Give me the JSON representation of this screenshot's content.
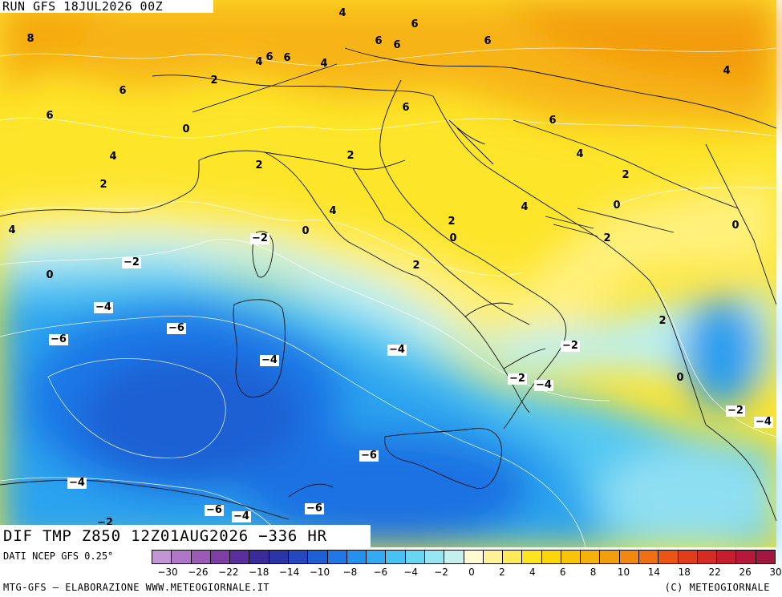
{
  "run_label": "RUN GFS 18JUL2026 00Z",
  "variable_label": "DIF TMP Z850 12Z01AUG2026 −336 HR",
  "source_label": "DATI NCEP GFS 0.25°",
  "credit_left": "MTG-GFS — ELABORAZIONE WWW.METEOGIORNALE.IT",
  "credit_right": "(C) METEOGIORNALE",
  "colorbar": {
    "colors": [
      "#c495d6",
      "#b276c9",
      "#9d59b6",
      "#7e3ea6",
      "#5b2e9c",
      "#3b2a9a",
      "#2a36a8",
      "#2448c0",
      "#1f5fd6",
      "#1f78e6",
      "#2591ee",
      "#33aaf2",
      "#47c2f3",
      "#68d6f2",
      "#95e5f2",
      "#c4f0ee",
      "#fffbd0",
      "#fff39a",
      "#ffeb5a",
      "#fee320",
      "#fad60a",
      "#f7c40a",
      "#f5b20b",
      "#f39e0d",
      "#f28810",
      "#ef6f12",
      "#ea5514",
      "#e23d1a",
      "#d62a24",
      "#c61d30",
      "#b5183b",
      "#a3163f"
    ],
    "tick_labels": [
      "−30",
      "−26",
      "−22",
      "−18",
      "−14",
      "−10",
      "−8",
      "−6",
      "−4",
      "−2",
      "0",
      "2",
      "4",
      "6",
      "8",
      "10",
      "14",
      "18",
      "22",
      "26",
      "30"
    ]
  },
  "contour_labels": [
    {
      "text": "8",
      "bare": true
    },
    {
      "text": "6",
      "bare": true
    },
    {
      "text": "6",
      "bare": true
    },
    {
      "text": "4",
      "bare": true
    },
    {
      "text": "2",
      "bare": true
    },
    {
      "text": "0",
      "bare": true
    },
    {
      "text": "2",
      "bare": true
    },
    {
      "text": "4",
      "bare": true
    },
    {
      "text": "4",
      "bare": true
    },
    {
      "text": "6",
      "bare": true
    },
    {
      "text": "6",
      "bare": true
    },
    {
      "text": "4",
      "bare": true
    },
    {
      "text": "6",
      "bare": true
    },
    {
      "text": "6",
      "bare": true
    },
    {
      "text": "6",
      "bare": true
    },
    {
      "text": "6",
      "bare": true
    },
    {
      "text": "4",
      "bare": true
    },
    {
      "text": "6",
      "bare": true
    },
    {
      "text": "6",
      "bare": true
    },
    {
      "text": "4",
      "bare": true
    },
    {
      "text": "4",
      "bare": true
    },
    {
      "text": "2",
      "bare": true
    },
    {
      "text": "2",
      "bare": true
    },
    {
      "text": "4",
      "bare": true
    },
    {
      "text": "4",
      "bare": true
    },
    {
      "text": "2",
      "bare": true
    },
    {
      "text": "0",
      "bare": true
    },
    {
      "text": "0",
      "bare": true
    },
    {
      "text": "2",
      "bare": true
    },
    {
      "text": "0",
      "bare": true
    },
    {
      "text": "2",
      "bare": true
    },
    {
      "text": "2",
      "bare": true
    },
    {
      "text": "0",
      "bare": true
    },
    {
      "text": "−2",
      "bare": false
    },
    {
      "text": "−2",
      "bare": false
    },
    {
      "text": "0",
      "bare": true
    },
    {
      "text": "−4",
      "bare": false
    },
    {
      "text": "−6",
      "bare": false
    },
    {
      "text": "−6",
      "bare": false
    },
    {
      "text": "−4",
      "bare": false
    },
    {
      "text": "−4",
      "bare": false
    },
    {
      "text": "−2",
      "bare": false
    },
    {
      "text": "−2",
      "bare": false
    },
    {
      "text": "−4",
      "bare": false
    },
    {
      "text": "2",
      "bare": true
    },
    {
      "text": "0",
      "bare": true
    },
    {
      "text": "−2",
      "bare": false
    },
    {
      "text": "−4",
      "bare": false
    },
    {
      "text": "−6",
      "bare": false
    },
    {
      "text": "−4",
      "bare": false
    },
    {
      "text": "−6",
      "bare": false
    },
    {
      "text": "−4",
      "bare": false
    },
    {
      "text": "−6",
      "bare": false
    },
    {
      "text": "−2",
      "bare": true
    }
  ]
}
